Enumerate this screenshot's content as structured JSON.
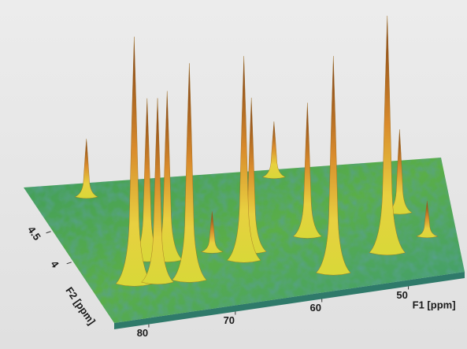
{
  "chart_data": {
    "type": "surface3d",
    "xlabel": "F1 [ppm]",
    "ylabel": "F2 [ppm]",
    "xlim": [
      84,
      43.5
    ],
    "xticks": [
      80,
      70,
      60,
      50
    ],
    "ylim": [
      5.2,
      3.0
    ],
    "yticks": [
      4.5,
      4.0
    ],
    "peaks": {
      "f1": [
        78.7,
        79.3,
        76.8,
        74.5,
        76.5,
        73.4,
        66.7,
        65.5,
        60.0,
        59.1,
        57.9,
        51.4,
        48.9,
        46.7,
        69.5
      ],
      "f2": [
        4.98,
        3.55,
        3.53,
        3.86,
        3.9,
        3.5,
        3.71,
        3.84,
        5.07,
        3.99,
        3.31,
        3.54,
        4.24,
        3.75,
        3.91
      ],
      "intensity": [
        23,
        98,
        73,
        67,
        64,
        86,
        81,
        61,
        22,
        53,
        86,
        94,
        33,
        14,
        16
      ]
    }
  }
}
